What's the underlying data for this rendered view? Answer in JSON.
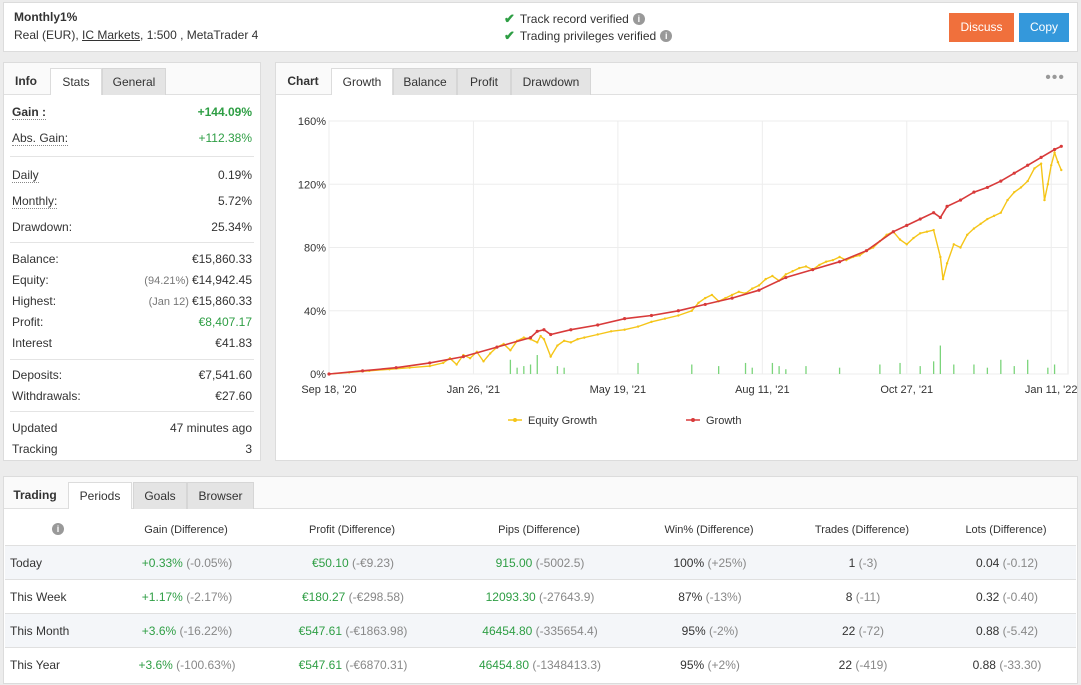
{
  "header": {
    "title": "Monthly1%",
    "sub_prefix": "Real (EUR),",
    "broker": "IC Markets",
    "sub_suffix": ", 1:500 , MetaTrader 4",
    "verify1": "Track record verified",
    "verify2": "Trading privileges verified",
    "discuss": "Discuss",
    "copy": "Copy"
  },
  "info_tabs": [
    "Info",
    "Stats",
    "General"
  ],
  "info": {
    "gain_k": "Gain :",
    "gain_v": "+144.09%",
    "absgain_k": "Abs. Gain:",
    "absgain_v": "+112.38%",
    "daily_k": "Daily",
    "daily_v": "0.19%",
    "monthly_k": "Monthly:",
    "monthly_v": "5.72%",
    "drawdown_k": "Drawdown:",
    "drawdown_v": "25.34%",
    "balance_k": "Balance:",
    "balance_v": "€15,860.33",
    "equity_k": "Equity:",
    "equity_pre": "(94.21%)",
    "equity_v": "€14,942.45",
    "highest_k": "Highest:",
    "highest_pre": "(Jan 12)",
    "highest_v": "€15,860.33",
    "profit_k": "Profit:",
    "profit_v": "€8,407.17",
    "interest_k": "Interest",
    "interest_v": "€41.83",
    "deposits_k": "Deposits:",
    "deposits_v": "€7,541.60",
    "withdrawals_k": "Withdrawals:",
    "withdrawals_v": "€27.60",
    "updated_k": "Updated",
    "updated_v": "47 minutes ago",
    "tracking_k": "Tracking",
    "tracking_v": "3"
  },
  "chart_tabs": [
    "Chart",
    "Growth",
    "Balance",
    "Profit",
    "Drawdown"
  ],
  "chart_data": {
    "type": "line",
    "x_ticks": [
      "Sep 18, '20",
      "Jan 26, '21",
      "May 19, '21",
      "Aug 11, '21",
      "Oct 27, '21",
      "Jan 11, '22"
    ],
    "y_ticks": [
      "0%",
      "40%",
      "80%",
      "120%",
      "160%"
    ],
    "ylim": [
      0,
      160
    ],
    "grid": true,
    "legend_position": "bottom",
    "series": [
      {
        "name": "Equity Growth",
        "color": "#f5c518",
        "points": [
          [
            0,
            0
          ],
          [
            3,
            1
          ],
          [
            6,
            2
          ],
          [
            9,
            3
          ],
          [
            12,
            4
          ],
          [
            15,
            5
          ],
          [
            17,
            7
          ],
          [
            18,
            10
          ],
          [
            19,
            6
          ],
          [
            20,
            12
          ],
          [
            21,
            10
          ],
          [
            22,
            14
          ],
          [
            23,
            8
          ],
          [
            24,
            13
          ],
          [
            25,
            17
          ],
          [
            26,
            19
          ],
          [
            27,
            15
          ],
          [
            28,
            21
          ],
          [
            29,
            23
          ],
          [
            30,
            22
          ],
          [
            31,
            20
          ],
          [
            31.5,
            24
          ],
          [
            32,
            22
          ],
          [
            33,
            11
          ],
          [
            34,
            18
          ],
          [
            35,
            21
          ],
          [
            36,
            20
          ],
          [
            37,
            22
          ],
          [
            38,
            23
          ],
          [
            40,
            25
          ],
          [
            42,
            27
          ],
          [
            44,
            28
          ],
          [
            46,
            30
          ],
          [
            48,
            33
          ],
          [
            50,
            35
          ],
          [
            52,
            37
          ],
          [
            54,
            40
          ],
          [
            55,
            45
          ],
          [
            56,
            48
          ],
          [
            57,
            50
          ],
          [
            58,
            46
          ],
          [
            59,
            48
          ],
          [
            60,
            50
          ],
          [
            61,
            52
          ],
          [
            62,
            51
          ],
          [
            63,
            54
          ],
          [
            64,
            56
          ],
          [
            65,
            60
          ],
          [
            66,
            62
          ],
          [
            67,
            59
          ],
          [
            68,
            63
          ],
          [
            69,
            65
          ],
          [
            70,
            67
          ],
          [
            71,
            68
          ],
          [
            72,
            66
          ],
          [
            73,
            69
          ],
          [
            74,
            71
          ],
          [
            75,
            72
          ],
          [
            76,
            74
          ],
          [
            77,
            72
          ],
          [
            78,
            74
          ],
          [
            79,
            75
          ],
          [
            80,
            78
          ],
          [
            81,
            80
          ],
          [
            82,
            84
          ],
          [
            83,
            88
          ],
          [
            84,
            90
          ],
          [
            85,
            85
          ],
          [
            86,
            82
          ],
          [
            87,
            86
          ],
          [
            88,
            89
          ],
          [
            89,
            90
          ],
          [
            90,
            91
          ],
          [
            91,
            74
          ],
          [
            91.4,
            60
          ],
          [
            92,
            70
          ],
          [
            93,
            82
          ],
          [
            94,
            80
          ],
          [
            95,
            88
          ],
          [
            96,
            92
          ],
          [
            97,
            95
          ],
          [
            98,
            98
          ],
          [
            99,
            100
          ],
          [
            100,
            102
          ],
          [
            101,
            110
          ],
          [
            102,
            115
          ],
          [
            103,
            118
          ],
          [
            104,
            122
          ],
          [
            105,
            130
          ],
          [
            106,
            133
          ],
          [
            106.5,
            110
          ],
          [
            107,
            120
          ],
          [
            107.5,
            132
          ],
          [
            108,
            140
          ],
          [
            108.5,
            134
          ],
          [
            109,
            129
          ]
        ]
      },
      {
        "name": "Growth",
        "color": "#d83a3a",
        "points": [
          [
            0,
            0
          ],
          [
            5,
            2
          ],
          [
            10,
            4
          ],
          [
            15,
            7
          ],
          [
            20,
            11
          ],
          [
            25,
            17
          ],
          [
            30,
            23
          ],
          [
            31,
            27
          ],
          [
            32,
            28
          ],
          [
            33,
            25
          ],
          [
            36,
            28
          ],
          [
            40,
            31
          ],
          [
            44,
            35
          ],
          [
            48,
            37
          ],
          [
            52,
            40
          ],
          [
            56,
            44
          ],
          [
            60,
            48
          ],
          [
            64,
            53
          ],
          [
            68,
            61
          ],
          [
            72,
            66
          ],
          [
            76,
            71
          ],
          [
            80,
            78
          ],
          [
            84,
            90
          ],
          [
            86,
            94
          ],
          [
            88,
            98
          ],
          [
            90,
            102
          ],
          [
            91,
            99
          ],
          [
            92,
            106
          ],
          [
            94,
            110
          ],
          [
            96,
            115
          ],
          [
            98,
            118
          ],
          [
            100,
            122
          ],
          [
            102,
            127
          ],
          [
            104,
            132
          ],
          [
            106,
            137
          ],
          [
            108,
            142
          ],
          [
            109,
            144
          ]
        ]
      }
    ],
    "bars_color": "#7bd47b"
  },
  "period_tabs": [
    "Trading",
    "Periods",
    "Goals",
    "Browser"
  ],
  "period_columns": [
    "Gain (Difference)",
    "Profit (Difference)",
    "Pips (Difference)",
    "Win% (Difference)",
    "Trades (Difference)",
    "Lots (Difference)"
  ],
  "period_rows": [
    {
      "name": "Today",
      "gain": "+0.33%",
      "gain_d": "(-0.05%)",
      "profit": "€50.10",
      "profit_d": "(-€9.23)",
      "pips": "915.00",
      "pips_d": "(-5002.5)",
      "win": "100%",
      "win_d": "(+25%)",
      "trades": "1",
      "trades_d": "(-3)",
      "lots": "0.04",
      "lots_d": "(-0.12)"
    },
    {
      "name": "This Week",
      "gain": "+1.17%",
      "gain_d": "(-2.17%)",
      "profit": "€180.27",
      "profit_d": "(-€298.58)",
      "pips": "12093.30",
      "pips_d": "(-27643.9)",
      "win": "87%",
      "win_d": "(-13%)",
      "trades": "8",
      "trades_d": "(-11)",
      "lots": "0.32",
      "lots_d": "(-0.40)"
    },
    {
      "name": "This Month",
      "gain": "+3.6%",
      "gain_d": "(-16.22%)",
      "profit": "€547.61",
      "profit_d": "(-€1863.98)",
      "pips": "46454.80",
      "pips_d": "(-335654.4)",
      "win": "95%",
      "win_d": "(-2%)",
      "trades": "22",
      "trades_d": "(-72)",
      "lots": "0.88",
      "lots_d": "(-5.42)"
    },
    {
      "name": "This Year",
      "gain": "+3.6%",
      "gain_d": "(-100.63%)",
      "profit": "€547.61",
      "profit_d": "(-€6870.31)",
      "pips": "46454.80",
      "pips_d": "(-1348413.3)",
      "win": "95%",
      "win_d": "(+2%)",
      "trades": "22",
      "trades_d": "(-419)",
      "lots": "0.88",
      "lots_d": "(-33.30)"
    }
  ]
}
